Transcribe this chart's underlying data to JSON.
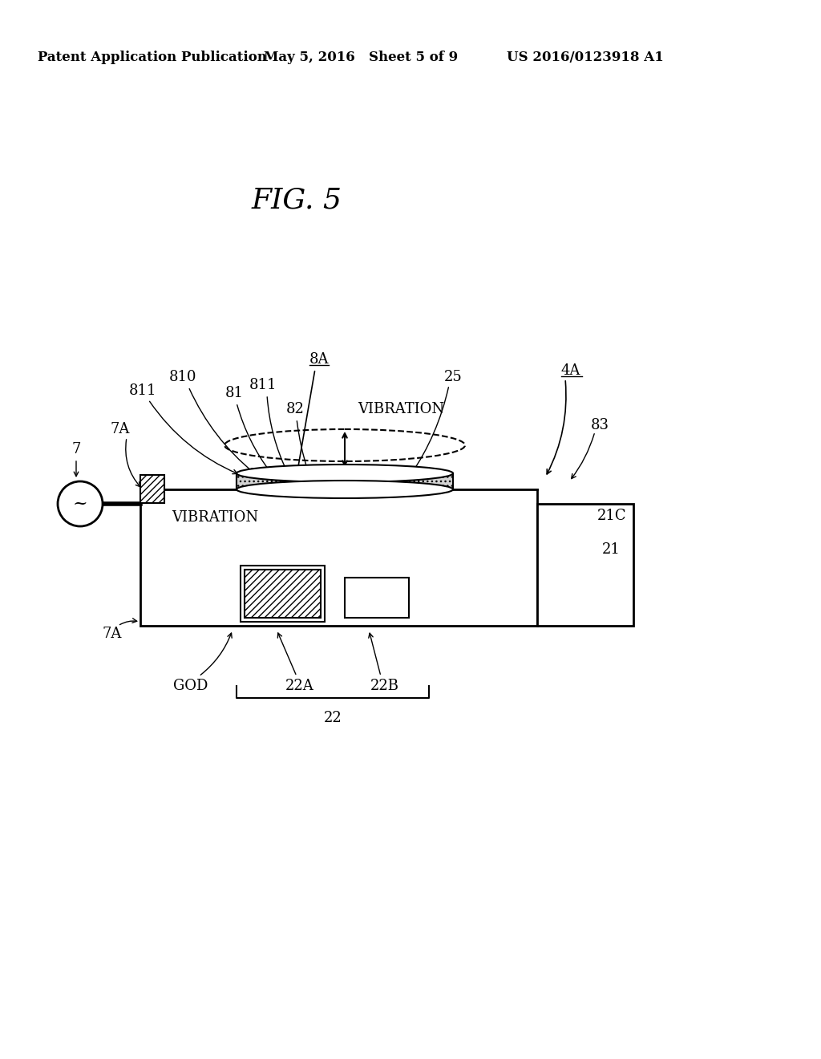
{
  "bg_color": "#ffffff",
  "header_left": "Patent Application Publication",
  "header_mid": "May 5, 2016   Sheet 5 of 9",
  "header_right": "US 2016/0123918 A1",
  "fig_title": "FIG. 5"
}
